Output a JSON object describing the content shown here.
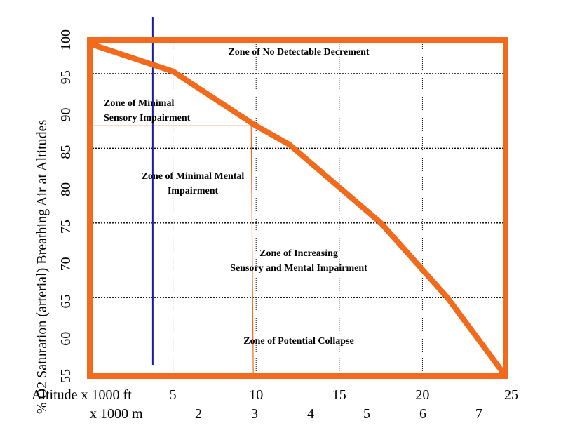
{
  "chart_data": {
    "type": "line",
    "ylabel": "% O2 Saturation (arterial) Breathing Air at Altitudes",
    "xlabel_ft": "Altitude x 1000 ft",
    "xlabel_m": "x 1000 m",
    "ylim": [
      55,
      100
    ],
    "xlim": [
      0,
      25
    ],
    "y_ticks": [
      55,
      60,
      65,
      70,
      75,
      80,
      85,
      90,
      95,
      100
    ],
    "x_ticks_ft": [
      5,
      10,
      15,
      20,
      25
    ],
    "x_ticks_m": [
      2,
      3,
      4,
      5,
      6,
      7
    ],
    "grid": true,
    "series": [
      {
        "x": [
          0,
          5,
          10,
          12,
          17.5,
          21.5,
          25
        ],
        "y": [
          99.5,
          95.8,
          88.5,
          86,
          75.5,
          65.5,
          55
        ]
      }
    ],
    "zone_boundaries_y": [
      95.5,
      85.5,
      75.5,
      65.5
    ],
    "zones": [
      {
        "label": "Zone of No Detectable Decrement",
        "lines": [
          "Zone of No Detectable Decrement"
        ]
      },
      {
        "label": "Zone of Minimal Sensory Impairment",
        "lines": [
          "Zone of Minimal",
          "Sensory Impairment"
        ]
      },
      {
        "label": "Zone of Minimal Mental Impairment",
        "lines": [
          "Zone of   Minimal Mental",
          "Impairment"
        ]
      },
      {
        "label": "Zone of Increasing Sensory and Mental Impairment",
        "lines": [
          "Zone of Increasing",
          "Sensory and Mental Impairment"
        ]
      },
      {
        "label": "Zone of Potential Collapse",
        "lines": [
          "Zone of Potential Collapse"
        ]
      }
    ],
    "reference_lines": {
      "vertical_blue_x_ft": 4,
      "orange_corner": {
        "x_ft": 10,
        "y": 88.5
      }
    },
    "colors": {
      "frame": "#F26A1B",
      "curve": "#F26A1B",
      "reference_orange": "#F26A1B",
      "reference_blue": "#1A1AAA",
      "grid": "#000000"
    }
  }
}
